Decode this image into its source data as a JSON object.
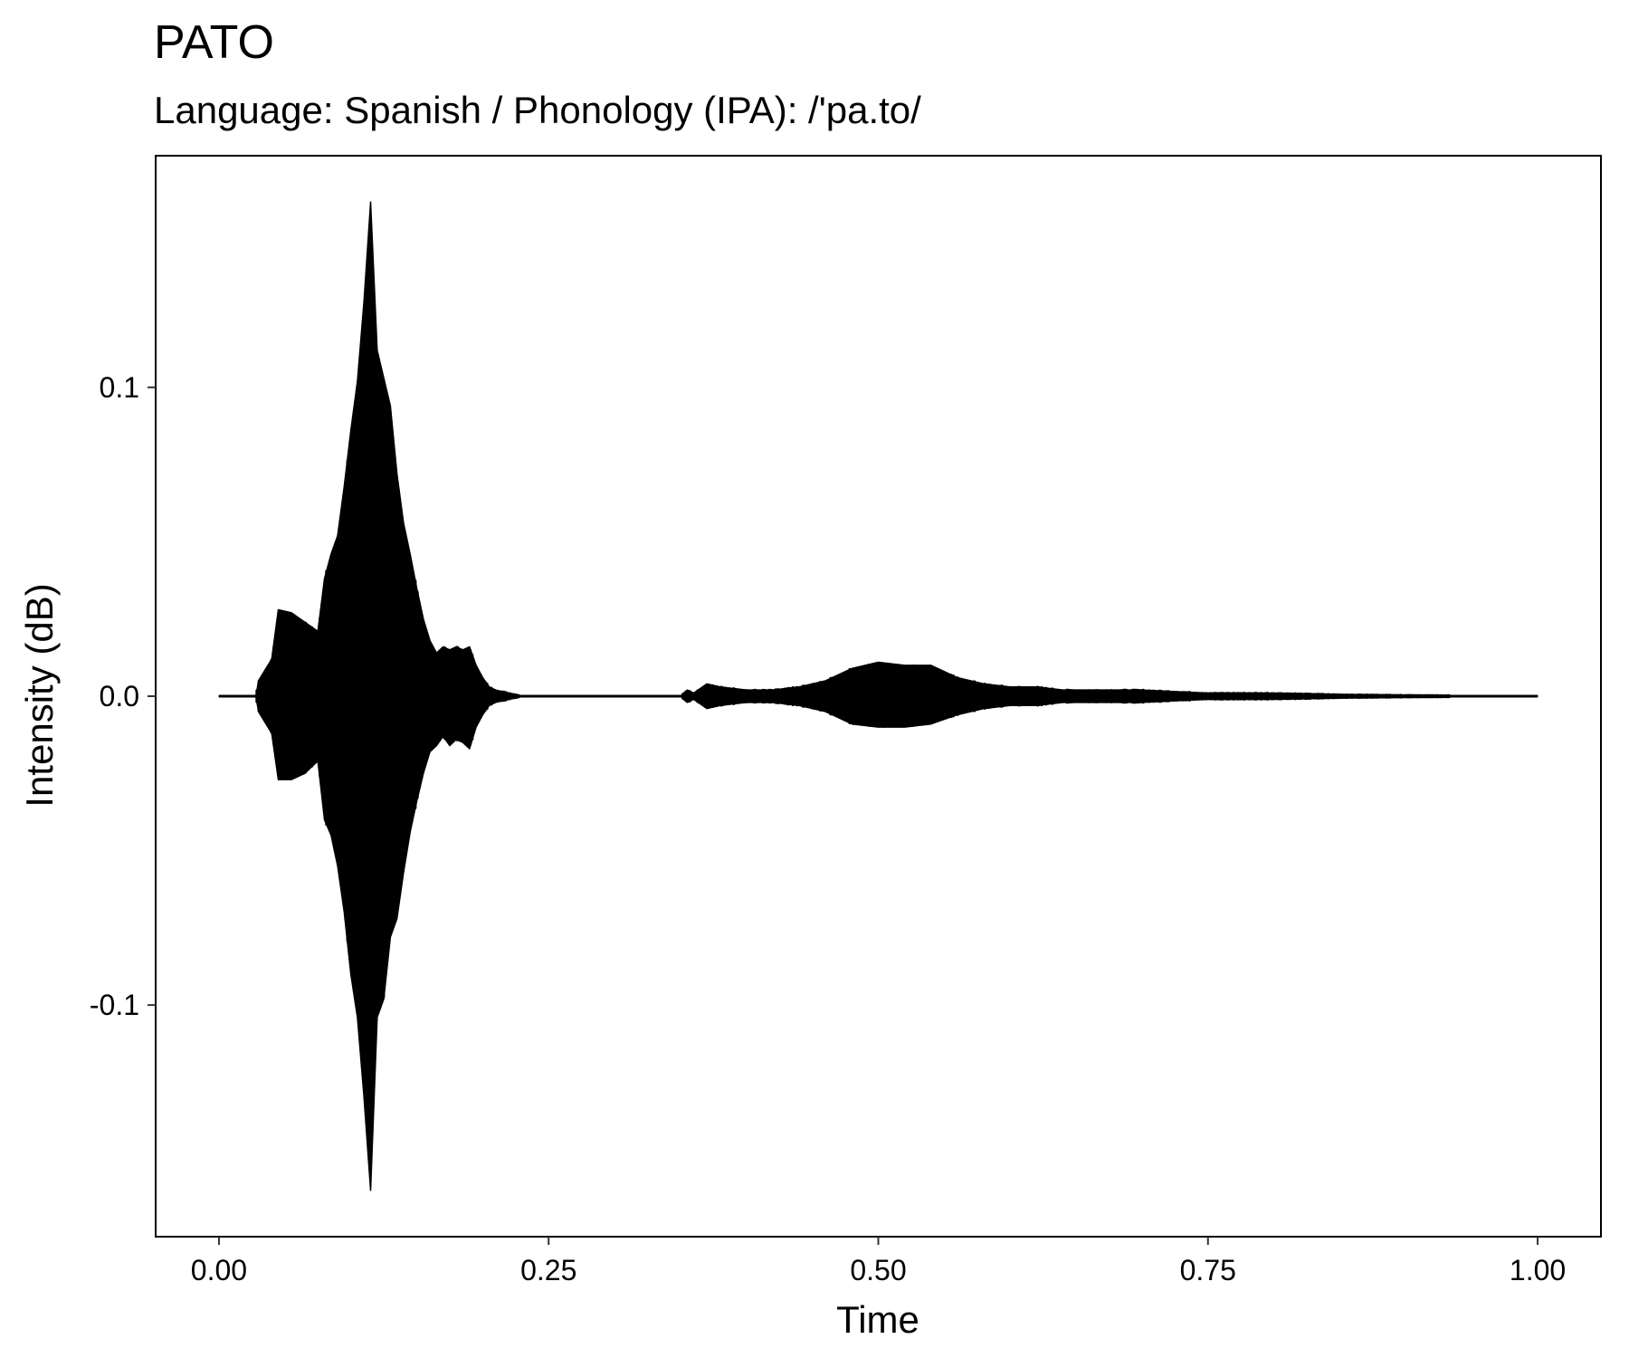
{
  "chart_data": {
    "type": "line",
    "title": "PATO",
    "subtitle": "Language: Spanish / Phonology (IPA): /'pa.to/",
    "xlabel": "Time",
    "ylabel": "Intensity (dB)",
    "xlim": [
      -0.048,
      1.048
    ],
    "ylim": [
      -0.175,
      0.175
    ],
    "x_ticks": [
      0.0,
      0.25,
      0.5,
      0.75,
      1.0
    ],
    "x_tick_labels": [
      "0.00",
      "0.25",
      "0.50",
      "0.75",
      "1.00"
    ],
    "y_ticks": [
      -0.1,
      0.0,
      0.1
    ],
    "y_tick_labels": [
      "-0.1",
      "0.0",
      "0.1"
    ],
    "grid": false,
    "line_color": "#000000",
    "series": [
      {
        "envelope": {
          "x": [
            0.0,
            0.028,
            0.03,
            0.04,
            0.045,
            0.055,
            0.065,
            0.075,
            0.08,
            0.085,
            0.09,
            0.095,
            0.1,
            0.105,
            0.11,
            0.115,
            0.12,
            0.125,
            0.13,
            0.135,
            0.14,
            0.145,
            0.15,
            0.155,
            0.16,
            0.165,
            0.17,
            0.175,
            0.18,
            0.185,
            0.19,
            0.195,
            0.2,
            0.205,
            0.21,
            0.22,
            0.23,
            0.35,
            0.355,
            0.36,
            0.37,
            0.38,
            0.4,
            0.42,
            0.44,
            0.46,
            0.48,
            0.5,
            0.52,
            0.54,
            0.56,
            0.58,
            0.6,
            0.62,
            0.64,
            0.66,
            0.7,
            0.75,
            0.8,
            0.85,
            0.9,
            1.0
          ],
          "upper": [
            0.0,
            0.0,
            0.005,
            0.012,
            0.028,
            0.027,
            0.024,
            0.021,
            0.038,
            0.046,
            0.052,
            0.068,
            0.086,
            0.102,
            0.128,
            0.16,
            0.112,
            0.103,
            0.094,
            0.072,
            0.056,
            0.046,
            0.035,
            0.025,
            0.018,
            0.014,
            0.016,
            0.015,
            0.016,
            0.015,
            0.016,
            0.01,
            0.006,
            0.003,
            0.002,
            0.001,
            0.0,
            0.0,
            0.002,
            0.001,
            0.004,
            0.003,
            0.002,
            0.002,
            0.003,
            0.005,
            0.009,
            0.011,
            0.01,
            0.01,
            0.006,
            0.004,
            0.003,
            0.003,
            0.002,
            0.002,
            0.002,
            0.001,
            0.001,
            0.0005,
            0.0003,
            0.0
          ],
          "lower": [
            0.0,
            0.0,
            -0.005,
            -0.012,
            -0.027,
            -0.027,
            -0.025,
            -0.021,
            -0.04,
            -0.045,
            -0.055,
            -0.07,
            -0.09,
            -0.104,
            -0.13,
            -0.16,
            -0.104,
            -0.098,
            -0.078,
            -0.072,
            -0.057,
            -0.044,
            -0.034,
            -0.025,
            -0.018,
            -0.016,
            -0.013,
            -0.016,
            -0.014,
            -0.015,
            -0.017,
            -0.01,
            -0.006,
            -0.003,
            -0.002,
            -0.001,
            0.0,
            0.0,
            -0.002,
            -0.001,
            -0.004,
            -0.003,
            -0.002,
            -0.002,
            -0.003,
            -0.005,
            -0.009,
            -0.01,
            -0.01,
            -0.009,
            -0.006,
            -0.004,
            -0.003,
            -0.003,
            -0.002,
            -0.002,
            -0.002,
            -0.001,
            -0.001,
            -0.0005,
            -0.0003,
            0.0
          ]
        }
      }
    ]
  }
}
